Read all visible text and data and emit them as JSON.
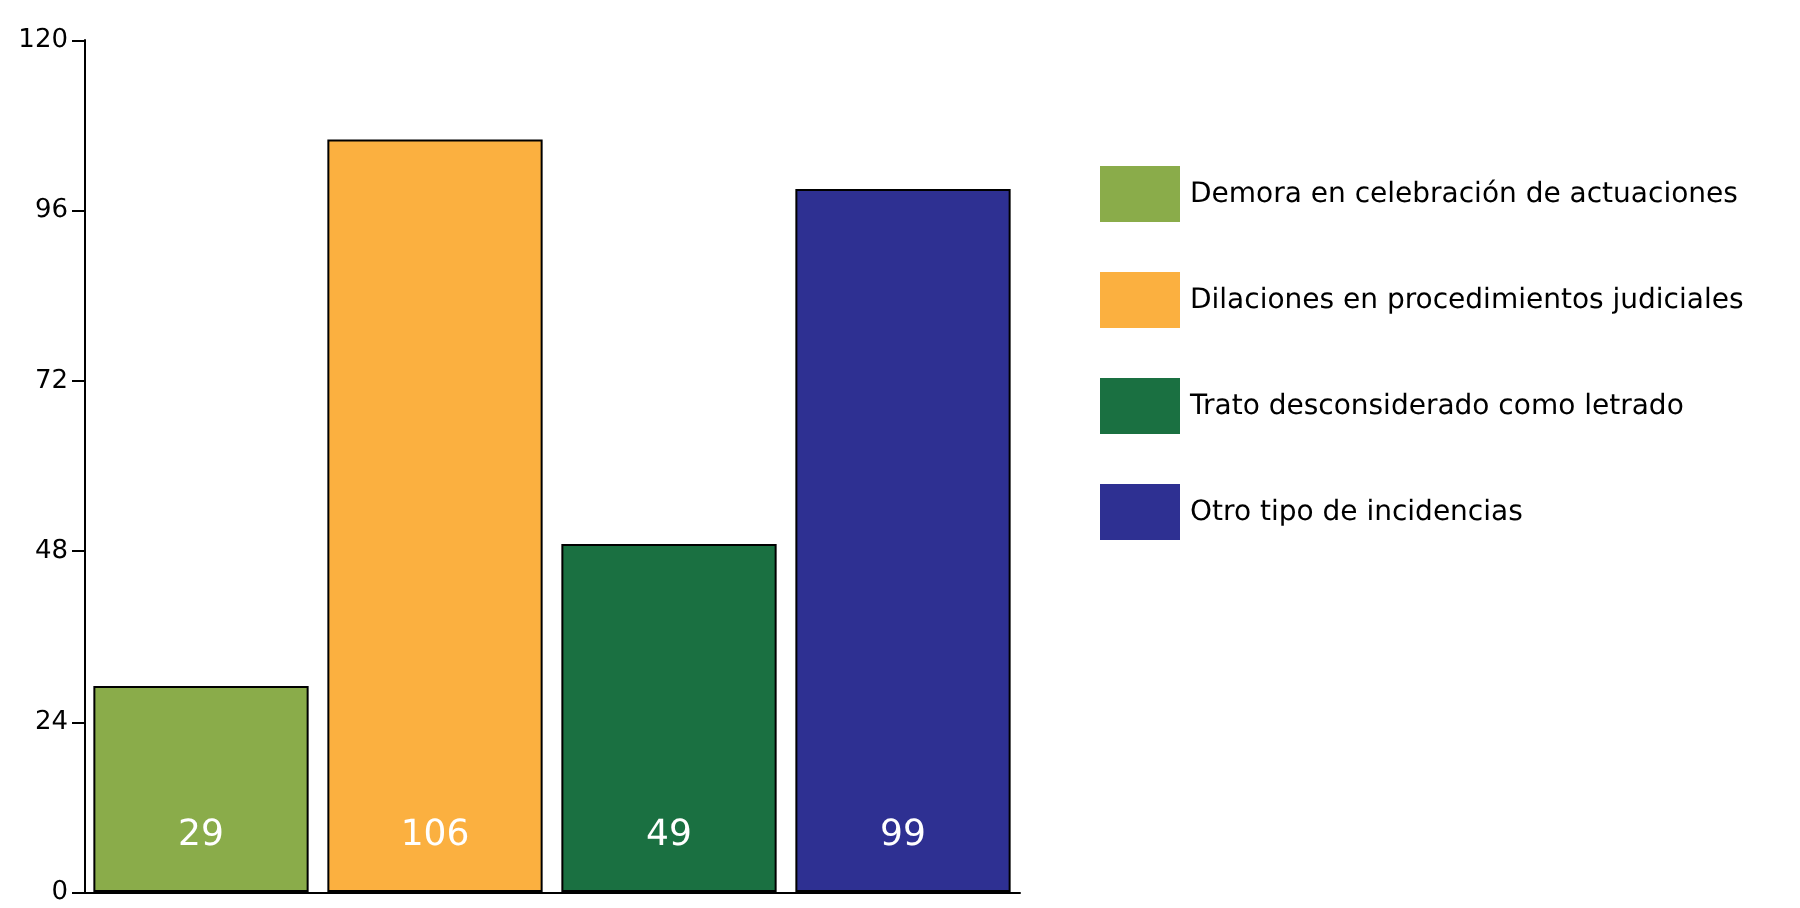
{
  "chart_data": {
    "type": "bar",
    "categories": [
      null,
      null,
      null,
      null
    ],
    "series": [
      {
        "name": "Demora en celebración de actuaciones",
        "color": "#8aac4a",
        "values": [
          29,
          null,
          null,
          null
        ]
      },
      {
        "name": "Dilaciones en procedimientos judiciales",
        "color": "#fbb040",
        "values": [
          null,
          106,
          null,
          null
        ]
      },
      {
        "name": "Trato desconsiderado como letrado",
        "color": "#1a7041",
        "values": [
          null,
          null,
          49,
          null
        ]
      },
      {
        "name": "Otro tipo de incidencias",
        "color": "#2e3092",
        "values": [
          null,
          null,
          null,
          99
        ]
      }
    ],
    "ylim": [
      0,
      120
    ],
    "yticks": [
      0,
      24,
      48,
      72,
      96,
      120
    ],
    "grid": false,
    "legend": "right",
    "data_labels": true
  }
}
